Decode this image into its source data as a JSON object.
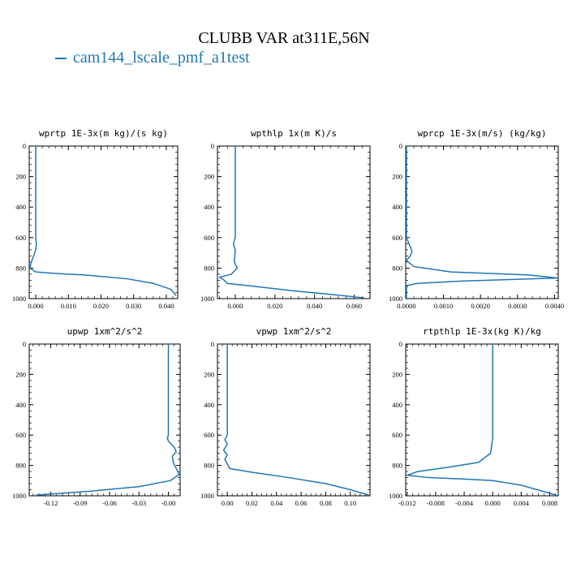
{
  "title": "CLUBB VAR at311E,56N",
  "legend": {
    "label": "cam144_lscale_pmf_a1test",
    "color": "#1f77b4"
  },
  "chart_data": [
    {
      "type": "line",
      "title": "wprtp  1E-3x(m kg)/(s kg)",
      "xlim": [
        -0.002,
        0.0435
      ],
      "ylim": [
        1000,
        0
      ],
      "xticks": [
        "0.000",
        "0.010",
        "0.020",
        "0.030",
        "0.040"
      ],
      "xtick_values": [
        0,
        0.01,
        0.02,
        0.03,
        0.04
      ],
      "yticks": [
        "0",
        "200",
        "400",
        "600",
        "800",
        "1000"
      ],
      "series": [
        {
          "color": "#1f77b4",
          "points": [
            [
              0.0,
              0
            ],
            [
              0.0,
              600
            ],
            [
              0.0002,
              640
            ],
            [
              0.0,
              680
            ],
            [
              -0.0015,
              770
            ],
            [
              -0.0018,
              800
            ],
            [
              0.0,
              825
            ],
            [
              0.006,
              835
            ],
            [
              0.015,
              845
            ],
            [
              0.028,
              870
            ],
            [
              0.036,
              900
            ],
            [
              0.0415,
              940
            ],
            [
              0.043,
              980
            ]
          ]
        }
      ]
    },
    {
      "type": "line",
      "title": "wpthlp  1x(m K)/s",
      "xlim": [
        -0.009,
        0.068
      ],
      "ylim": [
        1000,
        0
      ],
      "xticks": [
        "0.000",
        "0.020",
        "0.040",
        "0.060"
      ],
      "xtick_values": [
        0,
        0.02,
        0.04,
        0.06
      ],
      "yticks": [
        "0",
        "200",
        "400",
        "600",
        "800",
        "1000"
      ],
      "series": [
        {
          "color": "#1f77b4",
          "points": [
            [
              0.0,
              0
            ],
            [
              0.0,
              600
            ],
            [
              -0.001,
              640
            ],
            [
              0.0,
              680
            ],
            [
              -0.0005,
              760
            ],
            [
              0.001,
              800
            ],
            [
              -0.002,
              840
            ],
            [
              -0.008,
              860
            ],
            [
              -0.006,
              875
            ],
            [
              -0.004,
              900
            ],
            [
              0.01,
              920
            ],
            [
              0.03,
              950
            ],
            [
              0.05,
              975
            ],
            [
              0.065,
              995
            ]
          ]
        }
      ]
    },
    {
      "type": "line",
      "title": "wprcp  1E-3x(m/s) (kg/kg)",
      "xlim": [
        -2e-05,
        0.0041
      ],
      "ylim": [
        1000,
        0
      ],
      "xticks": [
        "0.0000",
        "0.0010",
        "0.0020",
        "0.0030",
        "0.0040"
      ],
      "xtick_values": [
        0,
        0.001,
        0.002,
        0.003,
        0.004
      ],
      "yticks": [
        "0",
        "200",
        "400",
        "600",
        "800",
        "1000"
      ],
      "series": [
        {
          "color": "#1f77b4",
          "points": [
            [
              0.0,
              0
            ],
            [
              0.0,
              600
            ],
            [
              0.0001,
              660
            ],
            [
              0.00015,
              690
            ],
            [
              0.0001,
              720
            ],
            [
              0.0,
              750
            ],
            [
              0.0002,
              790
            ],
            [
              0.0012,
              825
            ],
            [
              0.0033,
              845
            ],
            [
              0.0041,
              865
            ],
            [
              0.0015,
              885
            ],
            [
              0.0003,
              900
            ],
            [
              0.0,
              915
            ],
            [
              0.0,
              1000
            ]
          ]
        }
      ]
    },
    {
      "type": "line",
      "title": "upwp  1xm^2/s^2",
      "xlim": [
        -0.142,
        0.012
      ],
      "ylim": [
        1000,
        0
      ],
      "xticks": [
        "-0.12",
        "-0.09",
        "-0.06",
        "-0.03",
        "-0.00"
      ],
      "xtick_values": [
        -0.12,
        -0.09,
        -0.06,
        -0.03,
        0
      ],
      "yticks": [
        "0",
        "200",
        "400",
        "600",
        "800",
        "1000"
      ],
      "series": [
        {
          "color": "#1f77b4",
          "points": [
            [
              0.0,
              0
            ],
            [
              0.0,
              600
            ],
            [
              -0.001,
              620
            ],
            [
              0.0,
              640
            ],
            [
              0.006,
              680
            ],
            [
              0.008,
              710
            ],
            [
              0.004,
              740
            ],
            [
              0.005,
              780
            ],
            [
              0.008,
              820
            ],
            [
              0.011,
              860
            ],
            [
              0.002,
              900
            ],
            [
              -0.03,
              940
            ],
            [
              -0.08,
              970
            ],
            [
              -0.135,
              995
            ]
          ]
        }
      ]
    },
    {
      "type": "line",
      "title": "vpwp  1xm^2/s^2",
      "xlim": [
        -0.008,
        0.116
      ],
      "ylim": [
        1000,
        0
      ],
      "xticks": [
        "0.00",
        "0.02",
        "0.04",
        "0.06",
        "0.08",
        "0.10"
      ],
      "xtick_values": [
        0,
        0.02,
        0.04,
        0.06,
        0.08,
        0.1
      ],
      "yticks": [
        "0",
        "200",
        "400",
        "600",
        "800",
        "1000"
      ],
      "series": [
        {
          "color": "#1f77b4",
          "points": [
            [
              0.0,
              0
            ],
            [
              0.0,
              600
            ],
            [
              -0.002,
              630
            ],
            [
              0.0,
              660
            ],
            [
              -0.003,
              700
            ],
            [
              0.0,
              730
            ],
            [
              -0.002,
              760
            ],
            [
              0.0,
              790
            ],
            [
              0.002,
              820
            ],
            [
              0.02,
              845
            ],
            [
              0.05,
              880
            ],
            [
              0.08,
              920
            ],
            [
              0.1,
              960
            ],
            [
              0.115,
              995
            ]
          ]
        }
      ]
    },
    {
      "type": "line",
      "title": "rtpthlp  1E-3x(kg K)/kg",
      "xlim": [
        -0.0122,
        0.0092
      ],
      "ylim": [
        1000,
        0
      ],
      "xticks": [
        "-0.012",
        "-0.008",
        "-0.004",
        "0.000",
        "0.004",
        "0.008"
      ],
      "xtick_values": [
        -0.012,
        -0.008,
        -0.004,
        0,
        0.004,
        0.008
      ],
      "yticks": [
        "0",
        "200",
        "400",
        "600",
        "800",
        "1000"
      ],
      "series": [
        {
          "color": "#1f77b4",
          "points": [
            [
              0.0,
              0
            ],
            [
              0.0,
              620
            ],
            [
              -0.0003,
              720
            ],
            [
              -0.002,
              780
            ],
            [
              -0.006,
              810
            ],
            [
              -0.0105,
              840
            ],
            [
              -0.012,
              865
            ],
            [
              -0.009,
              880
            ],
            [
              -0.004,
              890
            ],
            [
              0.0,
              900
            ],
            [
              0.004,
              930
            ],
            [
              0.007,
              970
            ],
            [
              0.0092,
              1000
            ]
          ]
        }
      ]
    }
  ]
}
